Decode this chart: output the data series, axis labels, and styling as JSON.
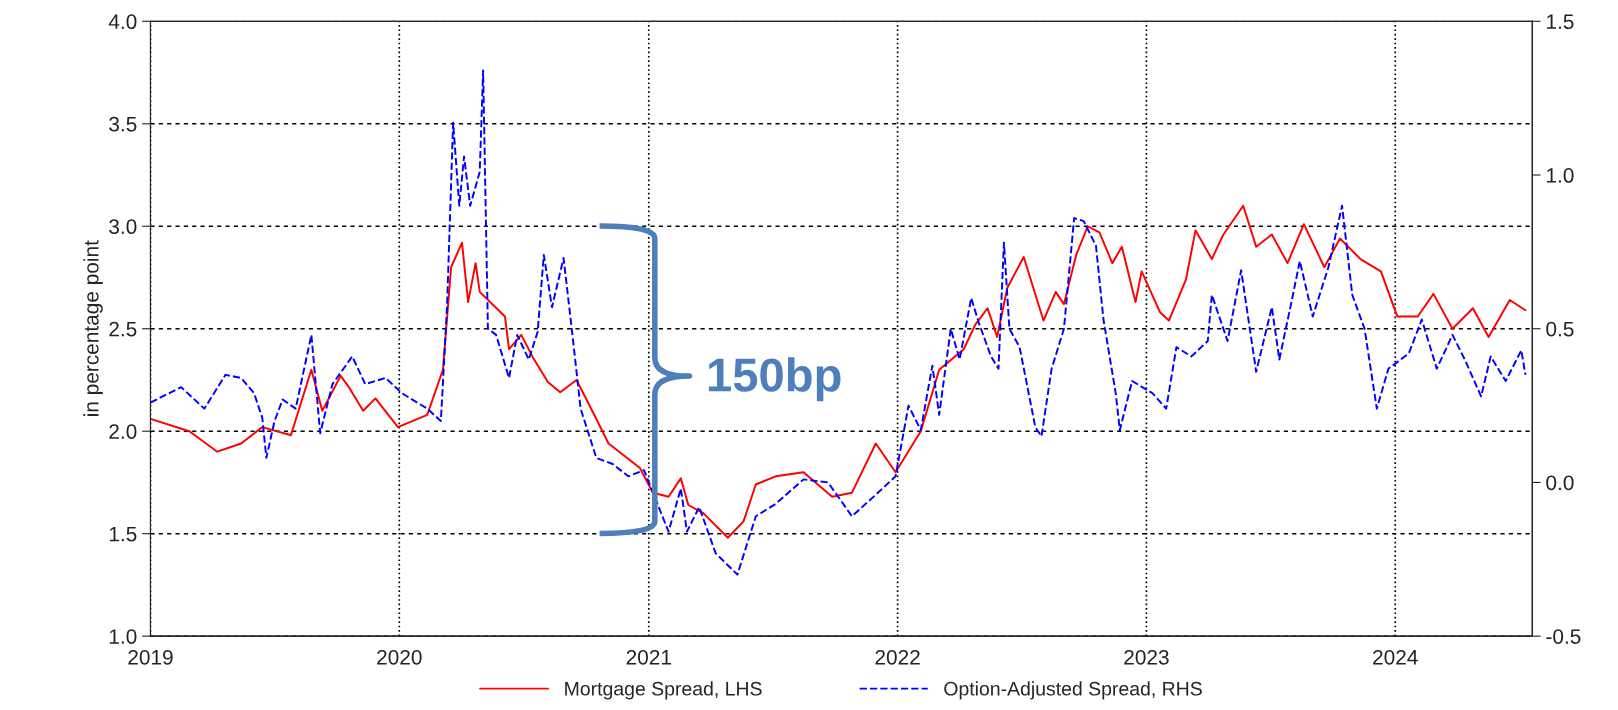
{
  "chart_data": {
    "type": "line",
    "ylabel": "in percentage point",
    "xlim": [
      "2019-01-01",
      "2024-07-20"
    ],
    "xticks": [
      "2019",
      "2020",
      "2021",
      "2022",
      "2023",
      "2024"
    ],
    "ylim": [
      1.0,
      4.0
    ],
    "yticks": [
      {
        "value": 1.0,
        "label": "1.0"
      },
      {
        "value": 1.5,
        "label": "1.5"
      },
      {
        "value": 2.0,
        "label": "2.0"
      },
      {
        "value": 2.5,
        "label": "2.5"
      },
      {
        "value": 3.0,
        "label": "3.0"
      },
      {
        "value": 3.5,
        "label": "3.5"
      },
      {
        "value": 4.0,
        "label": "4.0"
      }
    ],
    "y2lim": [
      -0.5,
      1.5
    ],
    "y2ticks": [
      {
        "value": -0.5,
        "label": "-0.5"
      },
      {
        "value": 0.0,
        "label": "0.0"
      },
      {
        "value": 0.5,
        "label": "0.5"
      },
      {
        "value": 1.0,
        "label": "1.0"
      },
      {
        "value": 1.5,
        "label": "1.5"
      }
    ],
    "grid": true,
    "legend": "bottom",
    "annotations": [
      "150bp"
    ],
    "series": [
      {
        "name": "Mortgage Spread, LHS",
        "color": "#ff0000",
        "line_style": "solid",
        "x": [
          "2019-01-01",
          "2019-02-27",
          "2019-04-09",
          "2019-05-14",
          "2019-06-14",
          "2019-07-26",
          "2019-08-25",
          "2019-09-10",
          "2019-10-07",
          "2019-10-18",
          "2019-11-09",
          "2019-11-27",
          "2019-12-30",
          "2020-02-11",
          "2020-03-05",
          "2020-03-17",
          "2020-04-02",
          "2020-04-11",
          "2020-04-22",
          "2020-04-28",
          "2020-06-04",
          "2020-06-10",
          "2020-06-28",
          "2020-07-15",
          "2020-08-06",
          "2020-08-24",
          "2020-09-17",
          "2020-10-10",
          "2020-11-03",
          "2020-11-26",
          "2020-12-19",
          "2021-01-07",
          "2021-01-30",
          "2021-02-17",
          "2021-02-28",
          "2021-03-22",
          "2021-04-27",
          "2021-05-20",
          "2021-06-07",
          "2021-07-06",
          "2021-08-16",
          "2021-09-27",
          "2021-10-26",
          "2021-11-30",
          "2021-12-29",
          "2022-02-04",
          "2022-03-03",
          "2022-04-08",
          "2022-04-25",
          "2022-05-13",
          "2022-05-27",
          "2022-06-11",
          "2022-07-05",
          "2022-08-03",
          "2022-08-21",
          "2022-09-02",
          "2022-09-20",
          "2022-10-07",
          "2022-10-24",
          "2022-11-12",
          "2022-11-26",
          "2022-12-16",
          "2022-12-25",
          "2023-01-21",
          "2023-02-03",
          "2023-02-28",
          "2023-03-14",
          "2023-04-07",
          "2023-04-24",
          "2023-05-23",
          "2023-06-11",
          "2023-07-04",
          "2023-07-27",
          "2023-08-20",
          "2023-09-19",
          "2023-10-12",
          "2023-11-11",
          "2023-12-11",
          "2024-01-04",
          "2024-02-03",
          "2024-02-26",
          "2024-03-25",
          "2024-04-24",
          "2024-05-17",
          "2024-06-17",
          "2024-07-10"
        ],
        "values": [
          2.06,
          2.0,
          1.9,
          1.94,
          2.02,
          1.98,
          2.3,
          2.1,
          2.27,
          2.22,
          2.1,
          2.16,
          2.02,
          2.08,
          2.3,
          2.8,
          2.92,
          2.63,
          2.82,
          2.68,
          2.56,
          2.4,
          2.47,
          2.36,
          2.24,
          2.19,
          2.25,
          2.1,
          1.94,
          1.88,
          1.82,
          1.7,
          1.68,
          1.77,
          1.64,
          1.6,
          1.48,
          1.56,
          1.74,
          1.78,
          1.8,
          1.68,
          1.7,
          1.94,
          1.8,
          2.0,
          2.3,
          2.4,
          2.52,
          2.6,
          2.46,
          2.7,
          2.85,
          2.54,
          2.68,
          2.62,
          2.86,
          3.0,
          2.97,
          2.82,
          2.9,
          2.63,
          2.78,
          2.58,
          2.54,
          2.74,
          2.98,
          2.84,
          2.96,
          3.1,
          2.9,
          2.96,
          2.82,
          3.01,
          2.8,
          2.94,
          2.84,
          2.78,
          2.56,
          2.56,
          2.67,
          2.5,
          2.6,
          2.46,
          2.64,
          2.59
        ]
      },
      {
        "name": "Option-Adjusted Spread, RHS",
        "color": "#0000ff",
        "line_style": "dashed",
        "axis": "y2",
        "x": [
          "2019-01-01",
          "2019-02-15",
          "2019-03-21",
          "2019-04-21",
          "2019-05-14",
          "2019-06-02",
          "2019-06-14",
          "2019-06-20",
          "2019-07-02",
          "2019-07-14",
          "2019-08-02",
          "2019-08-25",
          "2019-09-07",
          "2019-09-25",
          "2019-10-24",
          "2019-11-12",
          "2019-12-12",
          "2020-01-05",
          "2020-02-11",
          "2020-03-02",
          "2020-03-11",
          "2020-03-20",
          "2020-03-29",
          "2020-04-05",
          "2020-04-14",
          "2020-04-28",
          "2020-05-03",
          "2020-05-10",
          "2020-05-22",
          "2020-06-10",
          "2020-06-22",
          "2020-07-09",
          "2020-07-22",
          "2020-07-31",
          "2020-08-12",
          "2020-08-29",
          "2020-09-11",
          "2020-09-23",
          "2020-10-16",
          "2020-11-09",
          "2020-12-02",
          "2020-12-25",
          "2021-01-12",
          "2021-01-30",
          "2021-02-17",
          "2021-02-26",
          "2021-03-16",
          "2021-04-09",
          "2021-05-11",
          "2021-06-07",
          "2021-07-06",
          "2021-08-16",
          "2021-09-21",
          "2021-10-26",
          "2021-11-30",
          "2021-12-29",
          "2022-01-17",
          "2022-02-04",
          "2022-02-21",
          "2022-03-03",
          "2022-03-20",
          "2022-04-02",
          "2022-04-19",
          "2022-04-30",
          "2022-05-18",
          "2022-05-29",
          "2022-06-06",
          "2022-06-14",
          "2022-06-29",
          "2022-07-22",
          "2022-07-31",
          "2022-08-15",
          "2022-09-02",
          "2022-09-17",
          "2022-10-01",
          "2022-10-19",
          "2022-10-30",
          "2022-11-17",
          "2022-11-23",
          "2022-12-11",
          "2023-01-10",
          "2023-01-30",
          "2023-02-14",
          "2023-03-08",
          "2023-04-01",
          "2023-04-07",
          "2023-04-30",
          "2023-05-20",
          "2023-06-11",
          "2023-07-04",
          "2023-07-15",
          "2023-08-03",
          "2023-08-14",
          "2023-09-02",
          "2023-09-25",
          "2023-10-15",
          "2023-10-30",
          "2023-11-17",
          "2023-12-05",
          "2023-12-22",
          "2024-01-21",
          "2024-02-09",
          "2024-03-02",
          "2024-03-25",
          "2024-04-12",
          "2024-05-06",
          "2024-05-20",
          "2024-06-11",
          "2024-07-04",
          "2024-07-10"
        ],
        "values": [
          0.26,
          0.31,
          0.24,
          0.35,
          0.34,
          0.29,
          0.21,
          0.08,
          0.2,
          0.27,
          0.24,
          0.48,
          0.16,
          0.32,
          0.41,
          0.32,
          0.34,
          0.29,
          0.24,
          0.2,
          0.57,
          1.17,
          0.9,
          1.06,
          0.9,
          1.01,
          1.34,
          0.5,
          0.48,
          0.34,
          0.48,
          0.4,
          0.49,
          0.74,
          0.57,
          0.73,
          0.48,
          0.24,
          0.08,
          0.06,
          0.02,
          0.04,
          -0.06,
          -0.16,
          -0.02,
          -0.16,
          -0.08,
          -0.23,
          -0.3,
          -0.11,
          -0.07,
          0.01,
          0.0,
          -0.11,
          -0.04,
          0.02,
          0.25,
          0.17,
          0.38,
          0.22,
          0.5,
          0.4,
          0.6,
          0.52,
          0.41,
          0.37,
          0.78,
          0.5,
          0.44,
          0.18,
          0.15,
          0.37,
          0.5,
          0.86,
          0.85,
          0.77,
          0.53,
          0.29,
          0.17,
          0.33,
          0.29,
          0.24,
          0.44,
          0.41,
          0.46,
          0.61,
          0.46,
          0.69,
          0.36,
          0.57,
          0.4,
          0.6,
          0.72,
          0.54,
          0.7,
          0.9,
          0.61,
          0.5,
          0.24,
          0.37,
          0.42,
          0.53,
          0.37,
          0.48,
          0.4,
          0.28,
          0.41,
          0.33,
          0.43,
          0.35
        ]
      }
    ]
  }
}
